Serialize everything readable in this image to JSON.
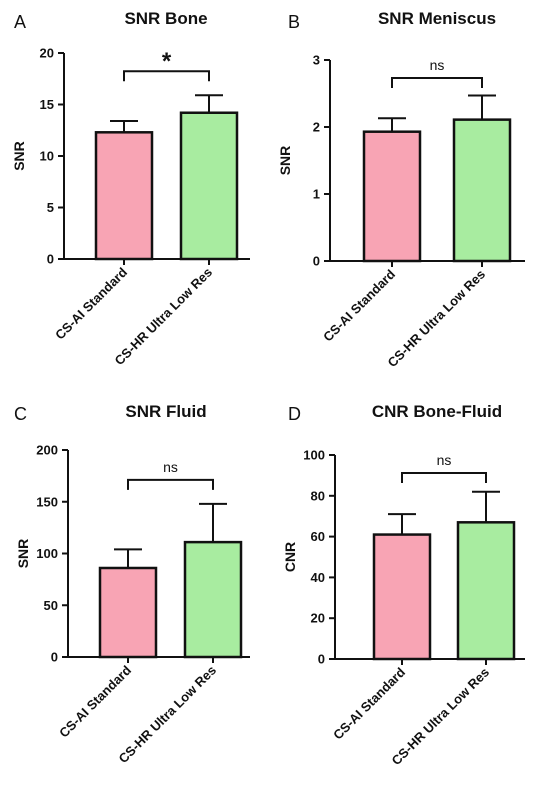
{
  "colors": {
    "bar_1": "#f8a4b4",
    "bar_2": "#a8eca0",
    "stroke": "#111111"
  },
  "chart_data": [
    {
      "panel": "A",
      "type": "bar",
      "title": "SNR Bone",
      "ylabel": "SNR",
      "xlabel": "",
      "categories": [
        "CS-AI Standard",
        "CS-HR Ultra Low Res"
      ],
      "values": [
        12.3,
        14.2
      ],
      "errors": [
        1.1,
        1.7
      ],
      "ylim": [
        0,
        20
      ],
      "yticks": [
        0,
        5,
        10,
        15,
        20
      ],
      "significance": "*"
    },
    {
      "panel": "B",
      "type": "bar",
      "title": "SNR Meniscus",
      "ylabel": "SNR",
      "xlabel": "",
      "categories": [
        "CS-AI Standard",
        "CS-HR Ultra Low Res"
      ],
      "values": [
        1.93,
        2.11
      ],
      "errors": [
        0.2,
        0.36
      ],
      "ylim": [
        0,
        3
      ],
      "yticks": [
        0,
        1,
        2,
        3
      ],
      "significance": "ns"
    },
    {
      "panel": "C",
      "type": "bar",
      "title": "SNR Fluid",
      "ylabel": "SNR",
      "xlabel": "",
      "categories": [
        "CS-AI Standard",
        "CS-HR Ultra Low Res"
      ],
      "values": [
        86,
        111
      ],
      "errors": [
        18,
        37
      ],
      "ylim": [
        0,
        200
      ],
      "yticks": [
        0,
        50,
        100,
        150,
        200
      ],
      "significance": "ns"
    },
    {
      "panel": "D",
      "type": "bar",
      "title": "CNR Bone-Fluid",
      "ylabel": "CNR",
      "xlabel": "",
      "categories": [
        "CS-AI Standard",
        "CS-HR Ultra Low Res"
      ],
      "values": [
        61,
        67
      ],
      "errors": [
        10,
        15
      ],
      "ylim": [
        0,
        100
      ],
      "yticks": [
        0,
        20,
        40,
        60,
        80,
        100
      ],
      "significance": "ns"
    }
  ]
}
